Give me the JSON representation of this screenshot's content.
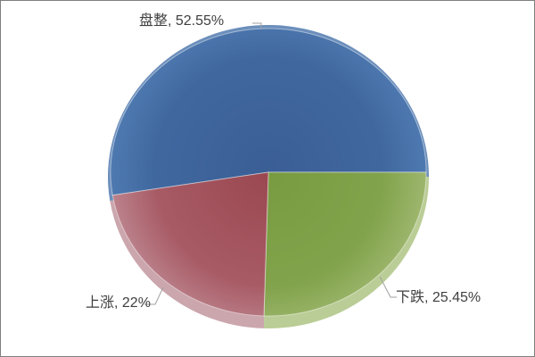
{
  "frame": {
    "background": "#FFFFFF",
    "border_color": "#7F7F7F"
  },
  "chart_data": {
    "type": "pie",
    "title": "",
    "categories": [
      "盘整",
      "下跌",
      "上涨"
    ],
    "values": [
      52.55,
      25.45,
      22
    ],
    "unit": "%",
    "start_angle_deg": 189.18,
    "direction": "clockwise",
    "legend_position": "none",
    "label_style": {
      "color": "#3F3F3F",
      "font_size_px": 16
    },
    "callout_line_color": "#A1A1A1",
    "slices": [
      {
        "label": "盘整",
        "value": 52.55,
        "display": "盘整, 52.55%",
        "color_main": "#40689F",
        "color_center": "#3A5E95",
        "color_edge": "#4E79B0",
        "color_rim": "#6C8FBC"
      },
      {
        "label": "下跌",
        "value": 25.45,
        "display": "下跌, 25.45%",
        "color_main": "#81A34B",
        "color_center": "#789B41",
        "color_edge": "#9DB66D",
        "color_rim": "#BACD96"
      },
      {
        "label": "上涨",
        "value": 22,
        "display": "上涨, 22%",
        "color_main": "#A85B65",
        "color_center": "#9A4750",
        "color_edge": "#BB828C",
        "color_rim": "#CBA6AD"
      }
    ]
  }
}
